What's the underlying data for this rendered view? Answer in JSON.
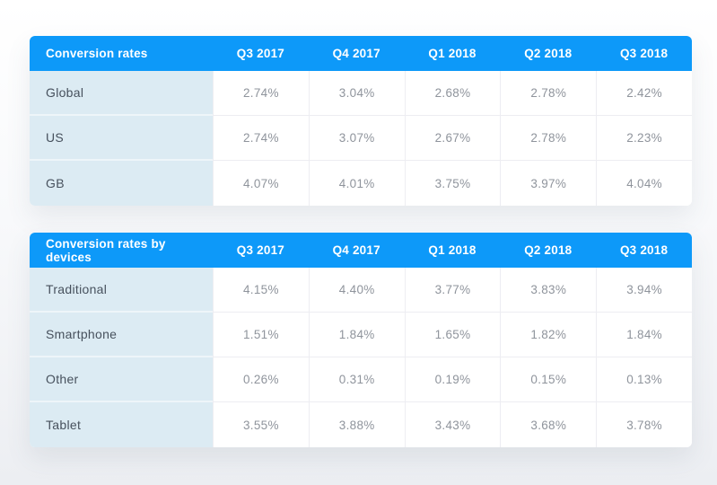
{
  "chart_data": [
    {
      "type": "table",
      "title": "Conversion rates",
      "columns": [
        "Q3 2017",
        "Q4 2017",
        "Q1 2018",
        "Q2 2018",
        "Q3 2018"
      ],
      "rows": [
        {
          "label": "Global",
          "values": [
            "2.74%",
            "3.04%",
            "2.68%",
            "2.78%",
            "2.42%"
          ]
        },
        {
          "label": "US",
          "values": [
            "2.74%",
            "3.07%",
            "2.67%",
            "2.78%",
            "2.23%"
          ]
        },
        {
          "label": "GB",
          "values": [
            "4.07%",
            "4.01%",
            "3.75%",
            "3.97%",
            "4.04%"
          ]
        }
      ]
    },
    {
      "type": "table",
      "title": "Conversion rates by devices",
      "columns": [
        "Q3 2017",
        "Q4 2017",
        "Q1 2018",
        "Q2 2018",
        "Q3 2018"
      ],
      "rows": [
        {
          "label": "Traditional",
          "values": [
            "4.15%",
            "4.40%",
            "3.77%",
            "3.83%",
            "3.94%"
          ]
        },
        {
          "label": "Smartphone",
          "values": [
            "1.51%",
            "1.84%",
            "1.65%",
            "1.82%",
            "1.84%"
          ]
        },
        {
          "label": "Other",
          "values": [
            "0.26%",
            "0.31%",
            "0.19%",
            "0.15%",
            "0.13%"
          ]
        },
        {
          "label": "Tablet",
          "values": [
            "3.55%",
            "3.88%",
            "3.43%",
            "3.68%",
            "3.78%"
          ]
        }
      ]
    }
  ],
  "colors": {
    "header_bg": "#0d99f9",
    "header_text": "#ffffff",
    "label_col_bg": "#dcebf3",
    "label_text": "#47515d",
    "value_text": "#8f949c",
    "cell_border": "#ededf2",
    "label_border": "#eef5f9",
    "table_bg": "#ffffff"
  }
}
